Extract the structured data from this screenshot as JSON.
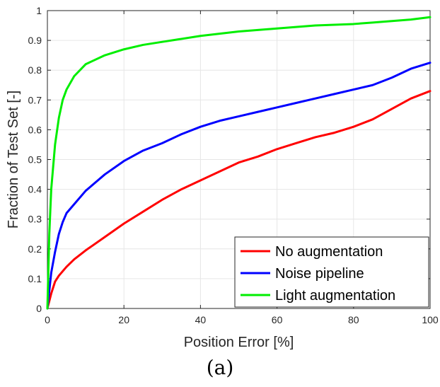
{
  "caption": "(a)",
  "chart_data": {
    "type": "line",
    "title": "",
    "xlabel": "Position Error [%]",
    "ylabel": "Fraction of Test Set [-]",
    "xlim": [
      0,
      100
    ],
    "ylim": [
      0,
      1
    ],
    "x_ticks": [
      0,
      20,
      40,
      60,
      80,
      100
    ],
    "y_ticks": [
      0,
      0.1,
      0.2,
      0.3,
      0.4,
      0.5,
      0.6,
      0.7,
      0.8,
      0.9,
      1
    ],
    "y_tick_labels": [
      "0",
      "0.1",
      "0.2",
      "0.3",
      "0.4",
      "0.5",
      "0.6",
      "0.7",
      "0.8",
      "0.9",
      "1"
    ],
    "grid": true,
    "legend_position": "bottom-right",
    "series": [
      {
        "name": "No augmentation",
        "color": "#ff0000",
        "x": [
          0,
          1,
          2,
          3,
          5,
          7,
          10,
          15,
          20,
          25,
          30,
          35,
          40,
          45,
          50,
          55,
          60,
          65,
          70,
          75,
          80,
          85,
          90,
          95,
          100
        ],
        "y": [
          0,
          0.05,
          0.09,
          0.11,
          0.14,
          0.165,
          0.195,
          0.24,
          0.285,
          0.325,
          0.365,
          0.4,
          0.43,
          0.46,
          0.49,
          0.51,
          0.535,
          0.555,
          0.575,
          0.59,
          0.61,
          0.635,
          0.67,
          0.705,
          0.73
        ]
      },
      {
        "name": "Noise pipeline",
        "color": "#0000ff",
        "x": [
          0,
          1,
          2,
          3,
          4,
          5,
          7,
          10,
          15,
          20,
          25,
          30,
          35,
          40,
          45,
          50,
          55,
          60,
          65,
          70,
          75,
          80,
          85,
          90,
          95,
          100
        ],
        "y": [
          0,
          0.12,
          0.19,
          0.25,
          0.29,
          0.32,
          0.35,
          0.395,
          0.45,
          0.495,
          0.53,
          0.555,
          0.585,
          0.61,
          0.63,
          0.645,
          0.66,
          0.675,
          0.69,
          0.705,
          0.72,
          0.735,
          0.75,
          0.775,
          0.805,
          0.825
        ]
      },
      {
        "name": "Light augmentation",
        "color": "#00ee00",
        "x": [
          0,
          0.5,
          1,
          2,
          3,
          4,
          5,
          7,
          10,
          15,
          20,
          25,
          30,
          40,
          50,
          60,
          70,
          80,
          85,
          90,
          95,
          100
        ],
        "y": [
          0,
          0.25,
          0.4,
          0.55,
          0.64,
          0.7,
          0.735,
          0.78,
          0.82,
          0.85,
          0.87,
          0.885,
          0.895,
          0.915,
          0.93,
          0.94,
          0.95,
          0.955,
          0.96,
          0.965,
          0.97,
          0.978
        ]
      }
    ]
  }
}
